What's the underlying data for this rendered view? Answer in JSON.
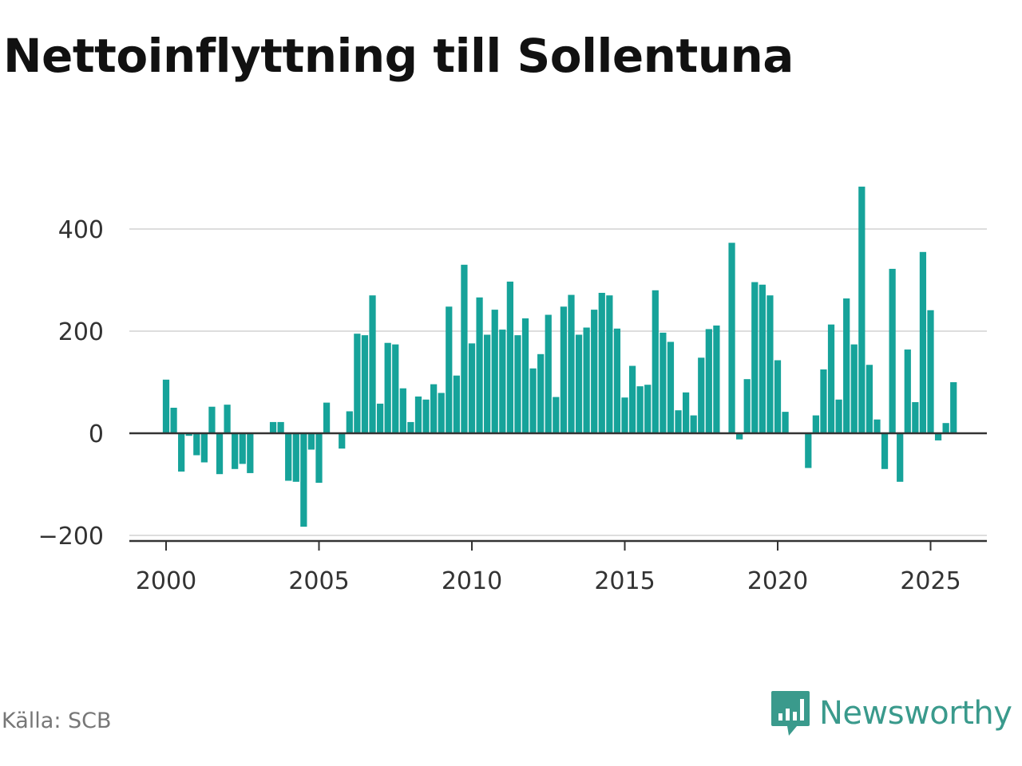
{
  "header": {
    "title": "Nettoinflyttning till Sollentuna"
  },
  "footer": {
    "source": "Källa: SCB",
    "brand": "Newsworthy",
    "brand_icon": "newsworthy-logo-icon"
  },
  "colors": {
    "bar": "#16a39a",
    "grid": "#dddddd",
    "axis": "#333333",
    "brand": "#3a9a8c"
  },
  "chart_data": {
    "type": "bar",
    "title": "Nettoinflyttning till Sollentuna",
    "xlabel": "",
    "ylabel": "",
    "x_start": 2000.0,
    "x_step": 0.25,
    "xlim": [
      1998.75,
      2026.75
    ],
    "ylim": [
      -210,
      490
    ],
    "xticks": [
      2000,
      2005,
      2010,
      2015,
      2020,
      2025
    ],
    "yticks": [
      -200,
      0,
      200,
      400
    ],
    "ytick_labels": [
      "−200",
      "0",
      "200",
      "400"
    ],
    "grid": true,
    "legend": "none",
    "values": [
      105,
      50,
      -75,
      -5,
      -43,
      -57,
      52,
      -80,
      56,
      -70,
      -60,
      -78,
      0,
      0,
      22,
      22,
      -93,
      -95,
      -183,
      -32,
      -97,
      60,
      0,
      -30,
      43,
      195,
      192,
      270,
      58,
      177,
      174,
      88,
      22,
      72,
      66,
      96,
      79,
      248,
      113,
      330,
      176,
      266,
      193,
      242,
      203,
      297,
      192,
      225,
      127,
      155,
      232,
      71,
      248,
      271,
      193,
      207,
      242,
      275,
      270,
      205,
      70,
      132,
      92,
      95,
      280,
      197,
      179,
      45,
      80,
      35,
      148,
      204,
      211,
      0,
      373,
      -12,
      106,
      296,
      291,
      270,
      143,
      42,
      0,
      0,
      -68,
      35,
      125,
      213,
      66,
      264,
      174,
      483,
      134,
      27,
      -70,
      322,
      -95,
      164,
      61,
      355,
      241,
      -14,
      20,
      100
    ]
  }
}
